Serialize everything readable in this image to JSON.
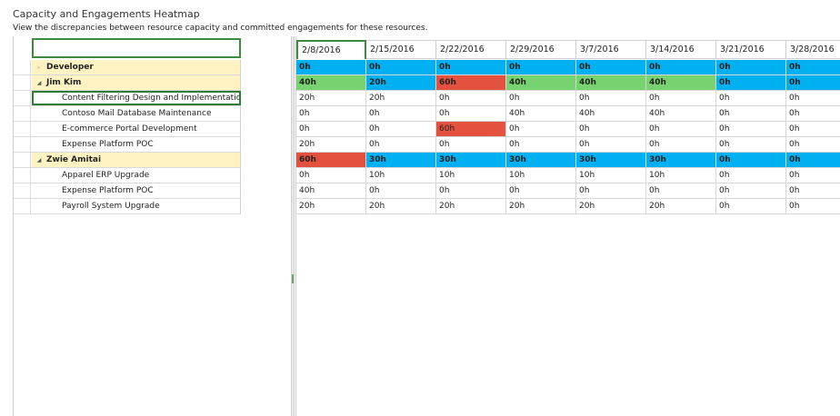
{
  "header": {
    "title": "Capacity and Engagements Heatmap",
    "subtitle": "View the discrepancies between resource capacity and committed engagements for these resources."
  },
  "colors": {
    "blue": "#00b0f0",
    "green": "#77d36f",
    "red": "#e4513f",
    "white": "#ffffff",
    "group_bg": "#fff3c4"
  },
  "icons": {
    "expand": "triangle-right-icon",
    "collapse": "triangle-down-icon"
  },
  "dates": [
    "2/8/2016",
    "2/15/2016",
    "2/22/2016",
    "2/29/2016",
    "3/7/2016",
    "3/14/2016",
    "3/21/2016",
    "3/28/2016"
  ],
  "rows": [
    {
      "label": "Developer",
      "type": "group",
      "toggle": "▸",
      "collapsed": true,
      "cells": [
        {
          "v": "0h",
          "c": "blue"
        },
        {
          "v": "0h",
          "c": "blue"
        },
        {
          "v": "0h",
          "c": "blue"
        },
        {
          "v": "0h",
          "c": "blue"
        },
        {
          "v": "0h",
          "c": "blue"
        },
        {
          "v": "0h",
          "c": "blue"
        },
        {
          "v": "0h",
          "c": "blue"
        },
        {
          "v": "0h",
          "c": "blue"
        }
      ]
    },
    {
      "label": "Jim Kim",
      "type": "group",
      "toggle": "◢",
      "collapsed": false,
      "cells": [
        {
          "v": "40h",
          "c": "green"
        },
        {
          "v": "20h",
          "c": "blue"
        },
        {
          "v": "60h",
          "c": "red"
        },
        {
          "v": "40h",
          "c": "green"
        },
        {
          "v": "40h",
          "c": "green"
        },
        {
          "v": "40h",
          "c": "green"
        },
        {
          "v": "0h",
          "c": "blue"
        },
        {
          "v": "0h",
          "c": "blue"
        }
      ]
    },
    {
      "label": "Content Filtering Design and Implementation",
      "type": "child",
      "focus": true,
      "cells": [
        {
          "v": "20h",
          "c": "white"
        },
        {
          "v": "20h",
          "c": "white"
        },
        {
          "v": "0h",
          "c": "white"
        },
        {
          "v": "0h",
          "c": "white"
        },
        {
          "v": "0h",
          "c": "white"
        },
        {
          "v": "0h",
          "c": "white"
        },
        {
          "v": "0h",
          "c": "white"
        },
        {
          "v": "0h",
          "c": "white"
        }
      ]
    },
    {
      "label": "Contoso Mail Database Maintenance",
      "type": "child",
      "cells": [
        {
          "v": "0h",
          "c": "white"
        },
        {
          "v": "0h",
          "c": "white"
        },
        {
          "v": "0h",
          "c": "white"
        },
        {
          "v": "40h",
          "c": "white"
        },
        {
          "v": "40h",
          "c": "white"
        },
        {
          "v": "40h",
          "c": "white"
        },
        {
          "v": "0h",
          "c": "white"
        },
        {
          "v": "0h",
          "c": "white"
        }
      ]
    },
    {
      "label": "E-commerce Portal Development",
      "type": "child",
      "cells": [
        {
          "v": "0h",
          "c": "white"
        },
        {
          "v": "0h",
          "c": "white"
        },
        {
          "v": "60h",
          "c": "red"
        },
        {
          "v": "0h",
          "c": "white"
        },
        {
          "v": "0h",
          "c": "white"
        },
        {
          "v": "0h",
          "c": "white"
        },
        {
          "v": "0h",
          "c": "white"
        },
        {
          "v": "0h",
          "c": "white"
        }
      ]
    },
    {
      "label": "Expense Platform POC",
      "type": "child",
      "cells": [
        {
          "v": "20h",
          "c": "white"
        },
        {
          "v": "0h",
          "c": "white"
        },
        {
          "v": "0h",
          "c": "white"
        },
        {
          "v": "0h",
          "c": "white"
        },
        {
          "v": "0h",
          "c": "white"
        },
        {
          "v": "0h",
          "c": "white"
        },
        {
          "v": "0h",
          "c": "white"
        },
        {
          "v": "0h",
          "c": "white"
        }
      ]
    },
    {
      "label": "Zwie Amitai",
      "type": "group",
      "toggle": "◢",
      "collapsed": false,
      "cells": [
        {
          "v": "60h",
          "c": "red"
        },
        {
          "v": "30h",
          "c": "blue"
        },
        {
          "v": "30h",
          "c": "blue"
        },
        {
          "v": "30h",
          "c": "blue"
        },
        {
          "v": "30h",
          "c": "blue"
        },
        {
          "v": "30h",
          "c": "blue"
        },
        {
          "v": "0h",
          "c": "blue"
        },
        {
          "v": "0h",
          "c": "blue"
        }
      ]
    },
    {
      "label": "Apparel ERP Upgrade",
      "type": "child",
      "cells": [
        {
          "v": "0h",
          "c": "white"
        },
        {
          "v": "10h",
          "c": "white"
        },
        {
          "v": "10h",
          "c": "white"
        },
        {
          "v": "10h",
          "c": "white"
        },
        {
          "v": "10h",
          "c": "white"
        },
        {
          "v": "10h",
          "c": "white"
        },
        {
          "v": "0h",
          "c": "white"
        },
        {
          "v": "0h",
          "c": "white"
        }
      ]
    },
    {
      "label": "Expense Platform POC",
      "type": "child",
      "cells": [
        {
          "v": "40h",
          "c": "white"
        },
        {
          "v": "0h",
          "c": "white"
        },
        {
          "v": "0h",
          "c": "white"
        },
        {
          "v": "0h",
          "c": "white"
        },
        {
          "v": "0h",
          "c": "white"
        },
        {
          "v": "0h",
          "c": "white"
        },
        {
          "v": "0h",
          "c": "white"
        },
        {
          "v": "0h",
          "c": "white"
        }
      ]
    },
    {
      "label": "Payroll System Upgrade",
      "type": "child",
      "cells": [
        {
          "v": "20h",
          "c": "white"
        },
        {
          "v": "20h",
          "c": "white"
        },
        {
          "v": "20h",
          "c": "white"
        },
        {
          "v": "20h",
          "c": "white"
        },
        {
          "v": "20h",
          "c": "white"
        },
        {
          "v": "20h",
          "c": "white"
        },
        {
          "v": "0h",
          "c": "white"
        },
        {
          "v": "0h",
          "c": "white"
        }
      ]
    }
  ]
}
